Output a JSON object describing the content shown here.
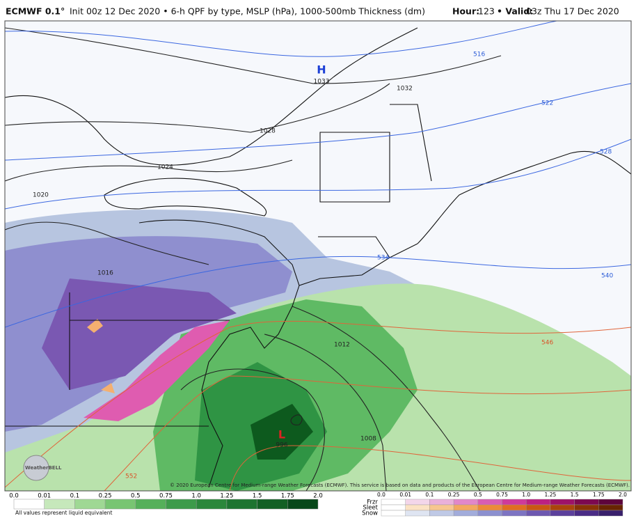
{
  "header": {
    "model": "ECMWF 0.1°",
    "description": "Init 00z 12 Dec 2020 • 6-h QPF by type, MSLP (hPa), 1000-500mb Thickness (dm)",
    "hour_label": "Hour:",
    "hour": "123",
    "valid_label": "• Valid:",
    "valid": "03z Thu 17 Dec 2020"
  },
  "map": {
    "high_symbol": "H",
    "high_pressure": "1033",
    "low_symbol": "L",
    "low_pressure": "996",
    "isobar_labels": [
      "1032",
      "1028",
      "1024",
      "1020",
      "1016",
      "1012",
      "1008"
    ],
    "thickness_labels": [
      "516",
      "522",
      "528",
      "534",
      "540",
      "546",
      "552"
    ],
    "logo": "WeatherBELL",
    "copyright": "© 2020 European Centre for Medium-range Weather Forecasts (ECMWF). This service is based on data and products of the European Centre for Medium-range Weather Forecasts (ECMWF)."
  },
  "legend": {
    "rain_ticks": [
      "0.0",
      "0.01",
      "0.1",
      "0.25",
      "0.5",
      "0.75",
      "1.0",
      "1.25",
      "1.5",
      "1.75",
      "2.0"
    ],
    "mix_ticks": [
      "0.0",
      "0.01",
      "0.1",
      "0.25",
      "0.5",
      "0.75",
      "1.0",
      "1.25",
      "1.5",
      "1.75",
      "2.0"
    ],
    "mix_rows": [
      "Frzr",
      "Sleet",
      "Snow"
    ],
    "note": "All values represent liquid equivalent"
  }
}
